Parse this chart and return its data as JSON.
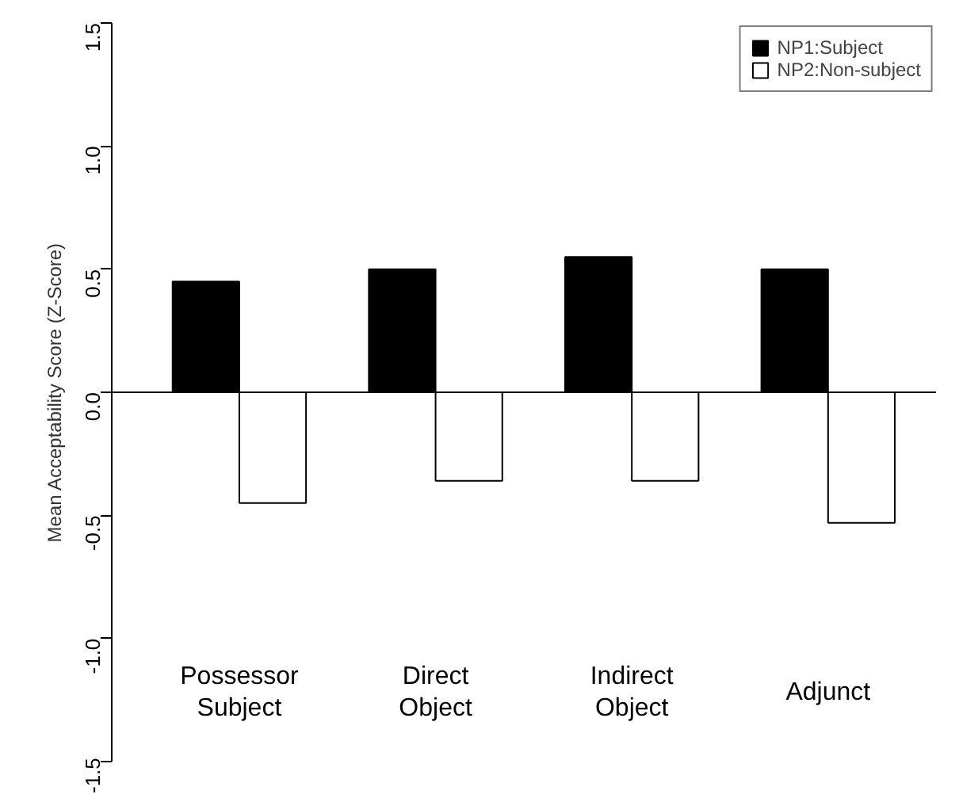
{
  "chart_data": {
    "type": "bar",
    "ylabel": "Mean Acceptability Score (Z-Score)",
    "categories": [
      "Possessor\nSubject",
      "Direct\nObject",
      "Indirect\nObject",
      "Adjunct"
    ],
    "series": [
      {
        "name": "NP1:Subject",
        "color": "#000000",
        "values": [
          0.45,
          0.5,
          0.55,
          0.5
        ]
      },
      {
        "name": "NP2:Non-subject",
        "color": "#ffffff",
        "values": [
          -0.45,
          -0.36,
          -0.36,
          -0.53
        ]
      }
    ],
    "ylim": [
      -1.5,
      1.5
    ],
    "yticks": [
      {
        "value": -1.5,
        "label": "-1.5"
      },
      {
        "value": -1.0,
        "label": "-1.0"
      },
      {
        "value": -0.5,
        "label": "-0.5"
      },
      {
        "value": 0,
        "label": "0.0"
      },
      {
        "value": 0.5,
        "label": "0.5"
      },
      {
        "value": 1.0,
        "label": "1.0"
      },
      {
        "value": 1.5,
        "label": "1.5"
      }
    ],
    "ref_lines": [
      {
        "axis": "y",
        "value": 0,
        "label": null,
        "color": "#000000"
      }
    ],
    "grid": false,
    "legend": "top right"
  }
}
